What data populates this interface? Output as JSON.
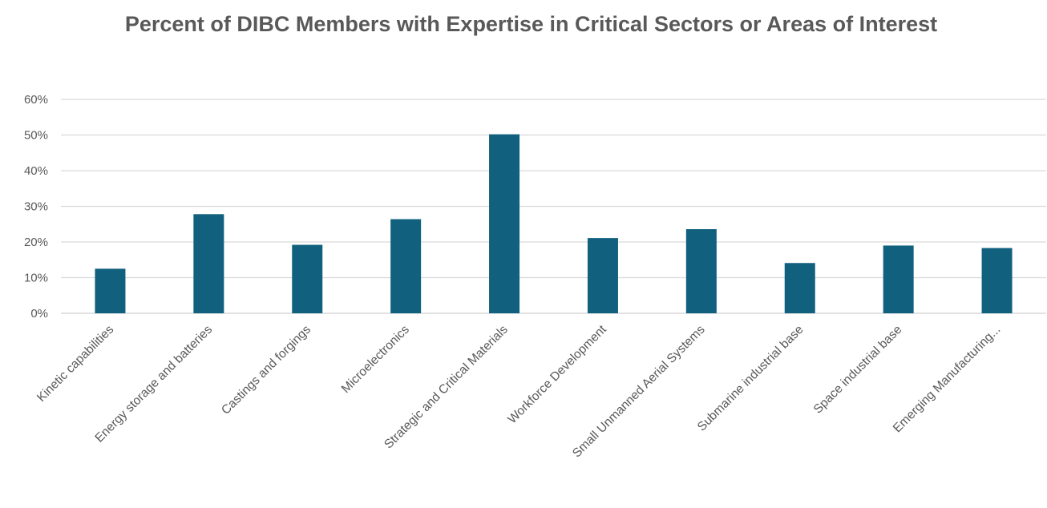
{
  "chart_data": {
    "type": "bar",
    "title": "Percent of DIBC Members with Expertise in Critical Sectors or Areas of Interest",
    "xlabel": "",
    "ylabel": "",
    "categories": [
      "Kinetic capabilities",
      "Energy storage and batteries",
      "Castings and forgings",
      "Microelectronics",
      "Strategic and Critical Materials",
      "Workforce Development",
      "Small Unmanned Aerial Systems",
      "Submarine industrial base",
      "Space industrial base",
      "Emerging Manufacturing..."
    ],
    "values": [
      12.5,
      27.8,
      19.2,
      26.4,
      50.2,
      21.1,
      23.6,
      14.1,
      19.0,
      18.3
    ],
    "ylim": [
      0,
      60
    ],
    "yticks": [
      "0%",
      "10%",
      "20%",
      "30%",
      "40%",
      "50%",
      "60%"
    ],
    "grid": true,
    "legend": "none",
    "bar_color": "#11607e",
    "grid_color": "#d9d9d9",
    "text_color": "#595959"
  }
}
